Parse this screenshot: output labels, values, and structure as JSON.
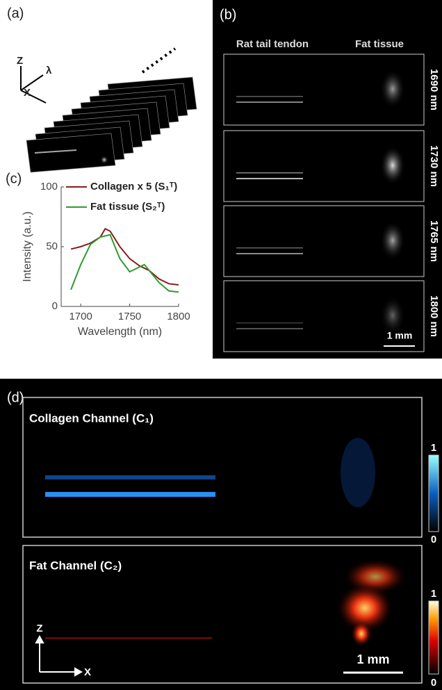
{
  "panel_labels": [
    "(a)",
    "(b)",
    "(c)",
    "(d)"
  ],
  "panel_a": {
    "axes": [
      "Z",
      "λ",
      "X"
    ]
  },
  "panel_b": {
    "columns": [
      "Rat tail tendon",
      "Fat tissue"
    ],
    "wavelengths": [
      "1690 nm",
      "1730 nm",
      "1765 nm",
      "1800 nm"
    ],
    "scale_bar": "1 mm"
  },
  "chart_data": {
    "type": "line",
    "x": [
      1690,
      1700,
      1710,
      1720,
      1725,
      1730,
      1740,
      1750,
      1760,
      1765,
      1770,
      1780,
      1790,
      1800
    ],
    "series": [
      {
        "name": "Collagen x 5 (S₁ᵀ)",
        "color": "#8b1a1a",
        "values": [
          48,
          50,
          53,
          58,
          65,
          63,
          50,
          40,
          34,
          32,
          30,
          23,
          19,
          18
        ]
      },
      {
        "name": "Fat tissue (S₂ᵀ)",
        "color": "#2e9b2e",
        "values": [
          14,
          35,
          52,
          58,
          59,
          60,
          40,
          29,
          33,
          35,
          30,
          20,
          13,
          12
        ]
      }
    ],
    "xlabel": "Wavelength (nm)",
    "ylabel": "Intensity (a.u.)",
    "xlim": [
      1680,
      1800
    ],
    "xticks": [
      1700,
      1750,
      1800
    ],
    "ylim": [
      0,
      100
    ],
    "yticks": [
      0,
      50,
      100
    ]
  },
  "panel_d": {
    "channels": [
      {
        "title": "Collagen Channel (C₁)",
        "colorbar_ticks": [
          1,
          0
        ]
      },
      {
        "title": "Fat Channel (C₂)",
        "colorbar_ticks": [
          1,
          0
        ]
      }
    ],
    "axes": [
      "Z",
      "X"
    ],
    "scale_bar": "1 mm"
  }
}
